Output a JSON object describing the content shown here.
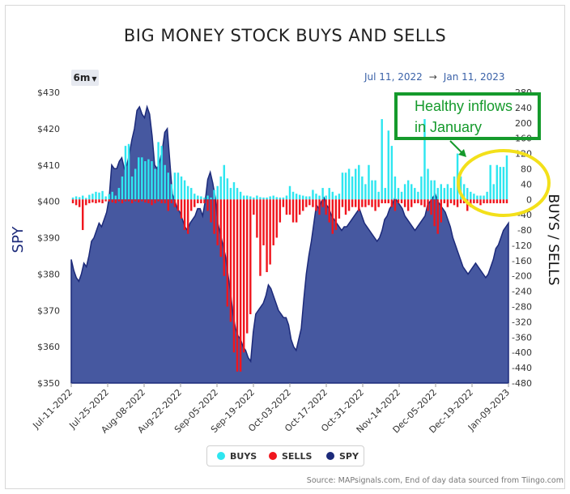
{
  "title": "BIG MONEY STOCK BUYS AND SELLS",
  "range_selector": {
    "label": "6m",
    "icon": "caret-down-icon"
  },
  "date_range": {
    "from": "Jul 11, 2022",
    "to": "Jan 11, 2023",
    "arrow": "→"
  },
  "annotation": {
    "text": "Healthy inflows\nin January"
  },
  "legend": {
    "buys": {
      "label": "BUYS",
      "color": "#2ee6f0"
    },
    "sells": {
      "label": "SELLS",
      "color": "#f0161e"
    },
    "spy": {
      "label": "SPY",
      "color": "#1c2a7a"
    }
  },
  "source": "Source: MAPsignals.com, End of day data sourced from Tiingo.com",
  "chart_data": {
    "type": "bar",
    "title": "BIG MONEY STOCK BUYS AND SELLS",
    "left_axis": {
      "label": "SPY",
      "ticks": [
        "$350",
        "$360",
        "$370",
        "$380",
        "$390",
        "$400",
        "$410",
        "$420",
        "$430"
      ],
      "range": [
        350,
        430
      ]
    },
    "right_axis": {
      "label": "BUYS / SELLS",
      "ticks": [
        "-480",
        "-440",
        "-400",
        "-360",
        "-320",
        "-280",
        "-240",
        "-200",
        "-160",
        "-120",
        "-80",
        "-40",
        "0",
        "40",
        "80",
        "120",
        "160",
        "200",
        "240",
        "280"
      ],
      "range": [
        -480,
        280
      ]
    },
    "x_ticks": [
      "Jul-11-2022",
      "Jul-25-2022",
      "Aug-08-2022",
      "Aug-22-2022",
      "Sep-05-2022",
      "Sep-19-2022",
      "Oct-03-2022",
      "Oct-17-2022",
      "Oct-31-2022",
      "Nov-14-2022",
      "Dec-05-2022",
      "Dec-19-2022",
      "Jan-09-2023"
    ],
    "series": [
      {
        "name": "BUYS",
        "color": "#2ee6f0",
        "values": [
          5,
          8,
          6,
          10,
          4,
          12,
          15,
          20,
          18,
          22,
          8,
          14,
          20,
          10,
          30,
          60,
          140,
          145,
          60,
          80,
          110,
          110,
          100,
          105,
          100,
          80,
          150,
          140,
          90,
          70,
          40,
          70,
          70,
          60,
          50,
          35,
          30,
          15,
          10,
          8,
          5,
          10,
          5,
          25,
          35,
          60,
          90,
          55,
          30,
          45,
          30,
          20,
          10,
          10,
          8,
          5,
          10,
          6,
          5,
          5,
          8,
          10,
          6,
          5,
          5,
          10,
          35,
          20,
          15,
          12,
          10,
          8,
          8,
          25,
          15,
          10,
          30,
          10,
          30,
          20,
          10,
          15,
          70,
          70,
          80,
          60,
          80,
          90,
          60,
          40,
          90,
          50,
          50,
          20,
          210,
          30,
          180,
          140,
          60,
          30,
          20,
          40,
          50,
          40,
          30,
          20,
          60,
          210,
          80,
          50,
          50,
          30,
          40,
          30,
          40,
          30,
          60,
          120,
          60,
          40,
          30,
          20,
          15,
          10,
          10,
          10,
          20,
          90,
          40,
          90,
          85,
          85,
          115
        ]
      },
      {
        "name": "SELLS",
        "color": "#f0161e",
        "values": [
          -10,
          -15,
          -20,
          -80,
          -15,
          -10,
          -8,
          -10,
          -8,
          -10,
          -5,
          -5,
          -8,
          -10,
          -5,
          -10,
          -5,
          -5,
          -10,
          -5,
          -8,
          -5,
          -8,
          -10,
          -15,
          -10,
          -5,
          -10,
          -10,
          -30,
          -10,
          -20,
          -30,
          -50,
          -80,
          -90,
          -30,
          -20,
          -10,
          -10,
          -10,
          -30,
          -60,
          -90,
          -120,
          -150,
          -200,
          -280,
          -320,
          -400,
          -450,
          -450,
          -400,
          -350,
          -300,
          -40,
          -100,
          -200,
          -120,
          -190,
          -170,
          -120,
          -100,
          -60,
          -20,
          -40,
          -40,
          -60,
          -60,
          -40,
          -30,
          -20,
          -15,
          -20,
          -30,
          -40,
          -20,
          -40,
          -60,
          -90,
          -80,
          -50,
          -20,
          -40,
          -30,
          -20,
          -20,
          -30,
          -20,
          -20,
          -15,
          -20,
          -30,
          -20,
          -10,
          -10,
          -10,
          -20,
          -30,
          -10,
          -10,
          -20,
          -30,
          -20,
          -10,
          -10,
          -15,
          -20,
          -30,
          -40,
          -70,
          -90,
          -60,
          -10,
          -20,
          -10,
          -15,
          -20,
          -10,
          -10,
          -30,
          -20,
          -10,
          -10,
          -15,
          -10,
          -10,
          -10,
          -10,
          -10,
          -10,
          -10,
          -10
        ]
      },
      {
        "name": "SPY",
        "color": "#1c2a7a",
        "values": [
          384,
          381,
          379,
          378,
          380,
          383,
          382,
          385,
          389,
          390,
          392,
          394,
          393,
          395,
          397,
          401,
          410,
          409,
          409,
          411,
          412,
          409,
          410,
          413,
          417,
          420,
          425,
          426,
          424,
          423,
          426,
          424,
          418,
          410,
          409,
          411,
          414,
          419,
          420,
          411,
          402,
          400,
          398,
          397,
          395,
          393,
          392,
          394,
          395,
          396,
          398,
          398,
          396,
          400,
          406,
          408,
          405,
          401,
          394,
          391,
          388,
          385,
          380,
          375,
          369,
          365,
          363,
          362,
          360,
          359,
          357,
          356,
          364,
          369,
          370,
          371,
          372,
          374,
          377,
          376,
          374,
          372,
          370,
          369,
          368,
          368,
          366,
          362,
          360,
          359,
          362,
          365,
          373,
          380,
          385,
          389,
          394,
          399,
          398,
          400,
          401,
          399,
          398,
          396,
          395,
          394,
          393,
          392,
          393,
          393,
          394,
          395,
          396,
          397,
          398,
          396,
          394,
          393,
          392,
          391,
          390,
          389,
          390,
          392,
          395,
          396,
          398,
          399,
          401,
          400,
          399,
          398,
          396,
          395,
          394,
          393,
          392,
          393,
          394,
          395,
          396,
          399,
          400,
          401,
          402,
          400,
          399,
          398,
          397,
          395,
          393,
          390,
          388,
          386,
          384,
          382,
          381,
          380,
          381,
          382,
          383,
          382,
          381,
          380,
          379,
          380,
          382,
          384,
          387,
          388,
          390,
          392,
          393,
          394
        ]
      }
    ],
    "grid": false,
    "legend_position": "bottom"
  }
}
